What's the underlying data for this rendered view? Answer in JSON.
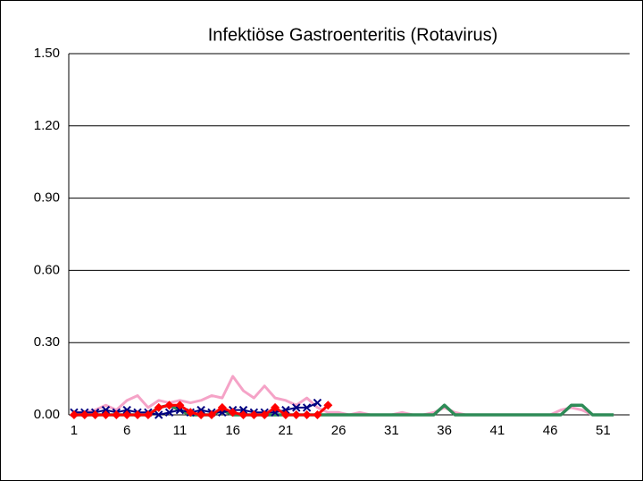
{
  "chart_data": {
    "type": "line",
    "title": "Infektiöse Gastroenteritis (Rotavirus)",
    "categories": [
      "1",
      null,
      null,
      null,
      null,
      "6",
      null,
      null,
      null,
      null,
      "11",
      null,
      null,
      null,
      null,
      "16",
      null,
      null,
      null,
      null,
      "21",
      null,
      null,
      null,
      null,
      "26",
      null,
      null,
      null,
      null,
      "31",
      null,
      null,
      null,
      null,
      "36",
      null,
      null,
      null,
      null,
      "41",
      null,
      null,
      null,
      null,
      "46",
      null,
      null,
      null,
      null,
      "51",
      null,
      null
    ],
    "series": [
      {
        "color": "#f5a3c7",
        "width": 3,
        "marker": null,
        "values": [
          0.01,
          0.01,
          0.02,
          0.04,
          0.02,
          0.06,
          0.08,
          0.03,
          0.06,
          0.05,
          0.06,
          0.05,
          0.06,
          0.08,
          0.07,
          0.16,
          0.1,
          0.07,
          0.12,
          0.07,
          0.06,
          0.04,
          0.07,
          0.03,
          0.01,
          0.01,
          0.0,
          0.01,
          0.0,
          0.0,
          0.0,
          0.01,
          0.0,
          0.0,
          0.01,
          0.03,
          0.01,
          0.0,
          0.0,
          0.0,
          0.0,
          0.0,
          0.0,
          0.0,
          0.0,
          0.0,
          0.02,
          0.03,
          0.02,
          0.0,
          0.0,
          0.0,
          null
        ]
      },
      {
        "color": "#2e8b57",
        "width": 3.5,
        "marker": null,
        "values": [
          0.0,
          0.0,
          0.0,
          0.0,
          0.0,
          0.0,
          0.0,
          0.0,
          0.03,
          0.04,
          0.02,
          0.0,
          0.0,
          0.0,
          0.02,
          0.0,
          0.0,
          0.0,
          0.0,
          0.0,
          0.0,
          0.0,
          0.0,
          0.0,
          0.0,
          0.0,
          0.0,
          0.0,
          0.0,
          0.0,
          0.0,
          0.0,
          0.0,
          0.0,
          0.0,
          0.04,
          0.0,
          0.0,
          0.0,
          0.0,
          0.0,
          0.0,
          0.0,
          0.0,
          0.0,
          0.0,
          0.0,
          0.04,
          0.04,
          0.0,
          0.0,
          0.0,
          null
        ]
      },
      {
        "color": "#000080",
        "width": 2,
        "marker": "x",
        "values": [
          0.01,
          0.01,
          0.01,
          0.02,
          0.01,
          0.02,
          0.01,
          0.01,
          0.0,
          0.01,
          0.02,
          0.01,
          0.02,
          0.01,
          0.01,
          0.02,
          0.02,
          0.01,
          0.01,
          0.01,
          0.02,
          0.03,
          0.03,
          0.05,
          null,
          null,
          null,
          null,
          null,
          null,
          null,
          null,
          null,
          null,
          null,
          null,
          null,
          null,
          null,
          null,
          null,
          null,
          null,
          null,
          null,
          null,
          null,
          null,
          null,
          null,
          null,
          null,
          null
        ]
      },
      {
        "color": "#ff0000",
        "width": 3,
        "marker": "diamond",
        "values": [
          0.0,
          0.0,
          0.0,
          0.0,
          0.0,
          0.0,
          0.0,
          0.0,
          0.03,
          0.04,
          0.04,
          0.01,
          0.0,
          0.0,
          0.03,
          0.01,
          0.0,
          0.0,
          0.0,
          0.03,
          0.0,
          0.0,
          0.0,
          0.0,
          0.04,
          null,
          null,
          null,
          null,
          null,
          null,
          null,
          null,
          null,
          null,
          null,
          null,
          null,
          null,
          null,
          null,
          null,
          null,
          null,
          null,
          null,
          null,
          null,
          null,
          null,
          null,
          null,
          null
        ]
      }
    ],
    "ylim": [
      0,
      1.5
    ],
    "yticks": [
      {
        "value": 0,
        "label": "0.00"
      },
      {
        "value": 0.3,
        "label": "0.30"
      },
      {
        "value": 0.6,
        "label": "0.60"
      },
      {
        "value": 0.9,
        "label": "0.90"
      },
      {
        "value": 1.2,
        "label": "1.20"
      },
      {
        "value": 1.5,
        "label": "1.50"
      }
    ],
    "grid": true
  }
}
